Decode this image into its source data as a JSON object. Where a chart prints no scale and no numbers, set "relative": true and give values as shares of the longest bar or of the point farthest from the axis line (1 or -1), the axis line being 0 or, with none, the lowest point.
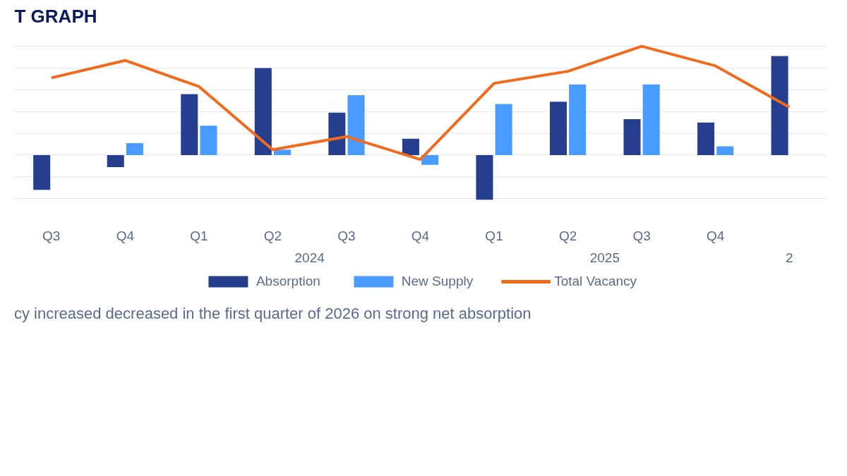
{
  "chart_data": {
    "type": "bar",
    "title": "T GRAPH",
    "relative": true,
    "categories": [
      "Q3",
      "Q4",
      "Q1",
      "Q2",
      "Q3",
      "Q4",
      "Q1",
      "Q2",
      "Q3",
      "Q4",
      null
    ],
    "series": [
      {
        "name": "Absorption",
        "color": "#253f8e",
        "values": [
          -0.32,
          -0.11,
          0.56,
          0.8,
          0.39,
          0.15,
          -0.41,
          0.49,
          0.33,
          0.3,
          0.91
        ]
      },
      {
        "name": "New Supply",
        "color": "#4a9bff",
        "values": [
          null,
          0.11,
          0.27,
          0.05,
          0.55,
          -0.09,
          0.47,
          0.65,
          0.65,
          0.08,
          null
        ]
      },
      {
        "name": "Total Vacancy",
        "type": "line",
        "color": "#f26b1d",
        "values": [
          0.71,
          0.87,
          0.63,
          0.05,
          0.17,
          -0.04,
          0.66,
          0.77,
          1,
          0.82,
          0.44
        ]
      }
    ],
    "annotations": [
      "2024",
      "2025",
      "2",
      "cy increased decreased in the first quarter of 2026 on strong net absorption"
    ],
    "legend": "bottom",
    "grid": "y"
  }
}
